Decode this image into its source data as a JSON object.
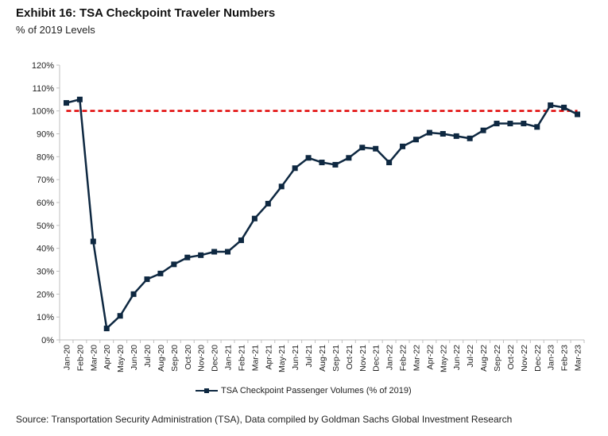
{
  "header": {
    "title": "Exhibit 16: TSA Checkpoint Traveler Numbers",
    "subtitle": "% of 2019 Levels"
  },
  "footer": {
    "source": "Source: Transportation Security Administration (TSA), Data compiled by Goldman Sachs Global Investment Research"
  },
  "colors": {
    "series": "#0e2841",
    "reference_line": "#e00000",
    "axis": "#bfbfbf",
    "text": "#222222"
  },
  "chart_data": {
    "type": "line",
    "title": "Exhibit 16: TSA Checkpoint Traveler Numbers",
    "subtitle": "% of 2019 Levels",
    "xlabel": "",
    "ylabel": "",
    "ylim": [
      0,
      120
    ],
    "ytick_step": 10,
    "ytick_labels": [
      "0%",
      "10%",
      "20%",
      "30%",
      "40%",
      "50%",
      "60%",
      "70%",
      "80%",
      "90%",
      "100%",
      "110%",
      "120%"
    ],
    "grid": false,
    "legend_position": "bottom",
    "categories": [
      "Jan-20",
      "Feb-20",
      "Mar-20",
      "Apr-20",
      "May-20",
      "Jun-20",
      "Jul-20",
      "Aug-20",
      "Sep-20",
      "Oct-20",
      "Nov-20",
      "Dec-20",
      "Jan-21",
      "Feb-21",
      "Mar-21",
      "Apr-21",
      "May-21",
      "Jun-21",
      "Jul-21",
      "Aug-21",
      "Sep-21",
      "Oct-21",
      "Nov-21",
      "Dec-21",
      "Jan-22",
      "Feb-22",
      "Mar-22",
      "Apr-22",
      "May-22",
      "Jun-22",
      "Jul-22",
      "Aug-22",
      "Sep-22",
      "Oct-22",
      "Nov-22",
      "Dec-22",
      "Jan-23",
      "Feb-23",
      "Mar-23"
    ],
    "series": [
      {
        "name": "TSA Checkpoint Passenger Volumes (% of 2019)",
        "color": "#0e2841",
        "values": [
          103.5,
          105,
          43,
          5,
          10.5,
          20,
          26.5,
          29,
          33,
          36,
          37,
          38.5,
          38.5,
          43.5,
          53,
          59.5,
          67,
          75,
          79.5,
          77.5,
          76.5,
          79.5,
          84,
          83.5,
          77.5,
          84.5,
          87.5,
          90.5,
          90,
          89,
          88,
          91.5,
          94.5,
          94.5,
          94.5,
          93,
          102.5,
          101.5,
          98.5
        ]
      }
    ],
    "reference_lines": [
      {
        "y": 100,
        "style": "dashed",
        "color": "#e00000"
      }
    ]
  }
}
